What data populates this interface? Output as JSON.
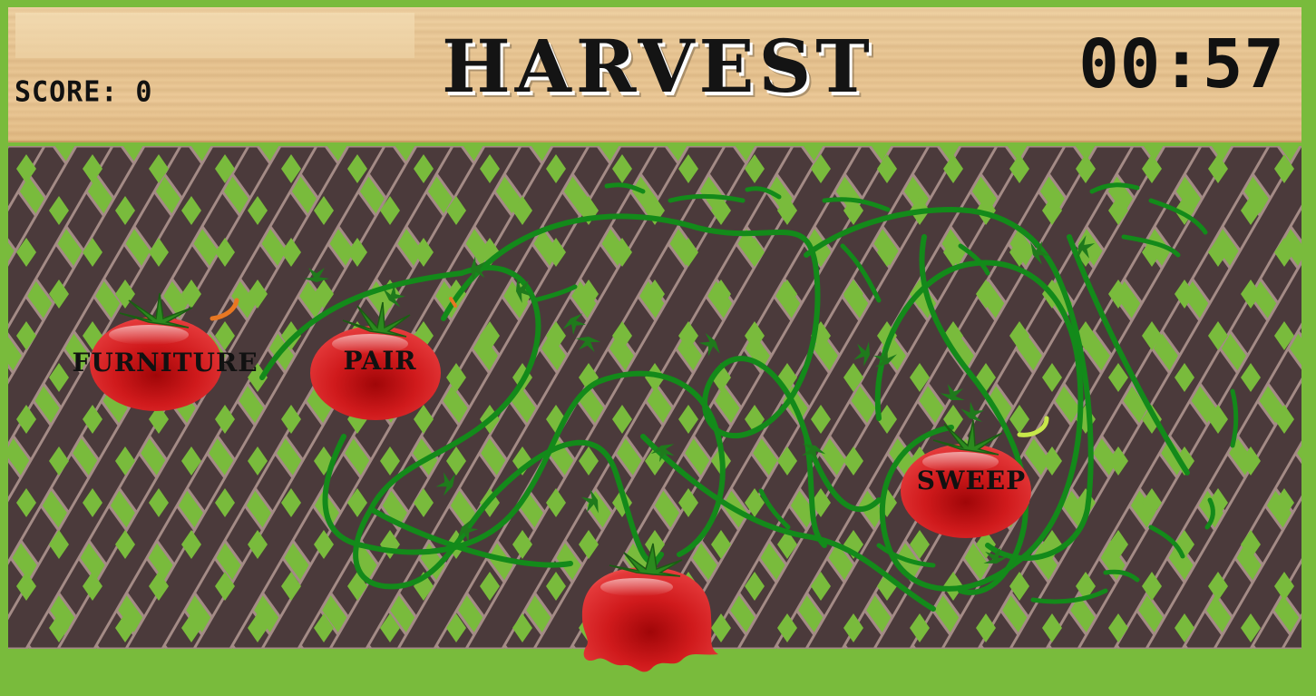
{
  "game": {
    "title": "HARVEST",
    "score_label": "SCORE: 0",
    "timer": "00:57"
  },
  "tomatoes": [
    {
      "word": "FURNITURE"
    },
    {
      "word": "PAIR"
    },
    {
      "word": "SWEEP"
    }
  ],
  "colors": {
    "background_green": "#79bb3c",
    "soil": "#4b3a3b",
    "lattice_edge": "#a48b86",
    "vine": "#138a1a",
    "tomato": "#d4191c",
    "wood": "#e8c593"
  }
}
